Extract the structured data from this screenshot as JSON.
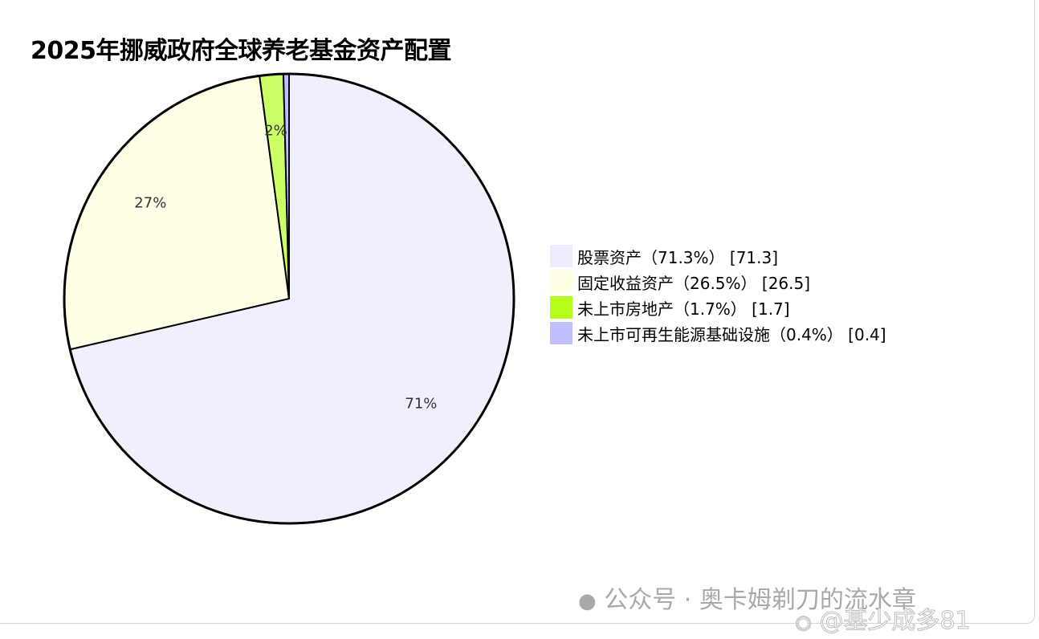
{
  "chart_data": {
    "type": "pie",
    "title": "2025年挪威政府全球养老基金资产配置",
    "slices": [
      {
        "label": "股票资产（71.3%）",
        "value": 71.3,
        "color": "#f0f0fc",
        "pct_label": "71%"
      },
      {
        "label": "固定收益资产（26.5%）",
        "value": 26.5,
        "color": "#ffffe6",
        "pct_label": "27%"
      },
      {
        "label": "未上市房地产（1.7%）",
        "value": 1.7,
        "color": "#ccff66",
        "pct_label": "2%"
      },
      {
        "label": "未上市可再生能源基础设施（0.4%）",
        "value": 0.4,
        "color": "#bfbfff",
        "pct_label": ""
      }
    ],
    "legend_swatch_colors": [
      "#ececfe",
      "#fefee4",
      "#b3ff19",
      "#c0c0ff"
    ],
    "legend_values": [
      "[71.3]",
      "[26.5]",
      "[1.7]",
      "[0.4]"
    ],
    "legend_placement": "right"
  },
  "watermarks": {
    "wechat": "公众号 · 奥卡姆剃刀的流水章",
    "weibo": "@基少成多81"
  }
}
